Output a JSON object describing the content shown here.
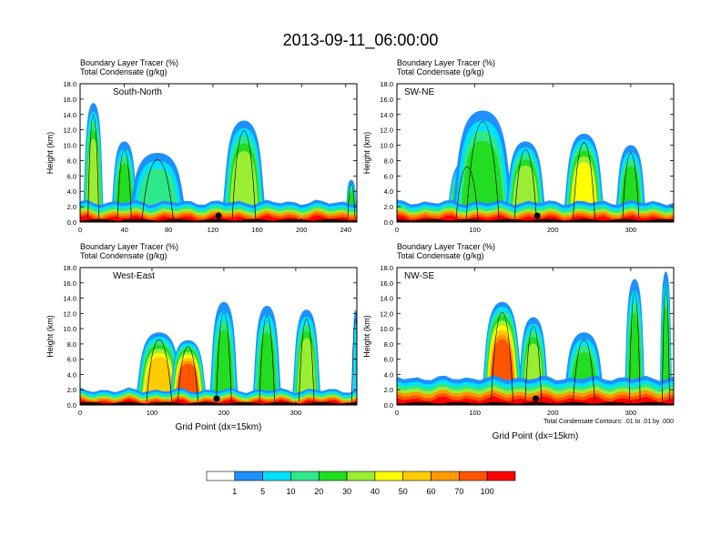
{
  "title": "2013-09-11_06:00:00",
  "chart_data": [
    {
      "type": "heatmap",
      "panel_label": "South-North",
      "subtitle_lines": [
        "Boundary Layer Tracer   (%)",
        "Total Condensate   (g/kg)"
      ],
      "ylabel": "Height (km)",
      "xlabel": "",
      "xlim": [
        0,
        250
      ],
      "ylim": [
        0,
        18
      ],
      "xticks": [
        0,
        40,
        80,
        120,
        160,
        200,
        240
      ],
      "yticks": [
        "0.0",
        "2.0",
        "4.0",
        "6.0",
        "8.0",
        "10.0",
        "12.0",
        "14.0",
        "16.0",
        "18.0"
      ],
      "marker_x": 125,
      "surface_tracer_depth_km": 1.6,
      "plumes": [
        {
          "x": 12,
          "width": 14,
          "top": 15.5,
          "level": 30
        },
        {
          "x": 40,
          "width": 18,
          "top": 10.5,
          "level": 20
        },
        {
          "x": 70,
          "width": 40,
          "top": 9.0,
          "level": 10
        },
        {
          "x": 148,
          "width": 30,
          "top": 13.2,
          "level": 30
        },
        {
          "x": 245,
          "width": 8,
          "top": 5.5,
          "level": 20
        }
      ]
    },
    {
      "type": "heatmap",
      "panel_label": "SW-NE",
      "subtitle_lines": [
        "Boundary Layer Tracer   (%)",
        "Total Condensate   (g/kg)"
      ],
      "ylabel": "Height (km)",
      "xlabel": "",
      "xlim": [
        0,
        355
      ],
      "ylim": [
        0,
        18
      ],
      "xticks": [
        0,
        100,
        200,
        300
      ],
      "yticks": [
        "0.0",
        "2.0",
        "4.0",
        "6.0",
        "8.0",
        "10.0",
        "12.0",
        "14.0",
        "16.0",
        "18.0"
      ],
      "marker_x": 180,
      "surface_tracer_depth_km": 1.6,
      "plumes": [
        {
          "x": 90,
          "width": 40,
          "top": 8.0,
          "level": 60
        },
        {
          "x": 110,
          "width": 60,
          "top": 14.5,
          "level": 20
        },
        {
          "x": 165,
          "width": 40,
          "top": 10.5,
          "level": 30
        },
        {
          "x": 240,
          "width": 40,
          "top": 11.5,
          "level": 40
        },
        {
          "x": 300,
          "width": 30,
          "top": 10.0,
          "level": 20
        }
      ]
    },
    {
      "type": "heatmap",
      "panel_label": "West-East",
      "subtitle_lines": [
        "Boundary Layer Tracer   (%)",
        "Total Condensate   (g/kg)"
      ],
      "ylabel": "Height (km)",
      "xlabel": "Grid Point (dx=15km)",
      "xlim": [
        0,
        385
      ],
      "ylim": [
        0,
        18
      ],
      "xticks": [
        0,
        100,
        200,
        300
      ],
      "yticks": [
        "0.0",
        "2.0",
        "4.0",
        "6.0",
        "8.0",
        "10.0",
        "12.0",
        "14.0",
        "16.0",
        "18.0"
      ],
      "marker_x": 190,
      "surface_tracer_depth_km": 1.2,
      "plumes": [
        {
          "x": 110,
          "width": 50,
          "top": 9.5,
          "level": 50
        },
        {
          "x": 150,
          "width": 40,
          "top": 8.5,
          "level": 70
        },
        {
          "x": 200,
          "width": 30,
          "top": 13.5,
          "level": 20
        },
        {
          "x": 260,
          "width": 30,
          "top": 13.0,
          "level": 20
        },
        {
          "x": 315,
          "width": 30,
          "top": 12.5,
          "level": 30
        },
        {
          "x": 383,
          "width": 6,
          "top": 12.5,
          "level": 5
        }
      ]
    },
    {
      "type": "heatmap",
      "panel_label": "NW-SE",
      "subtitle_lines": [
        "Boundary Layer Tracer   (%)",
        "Total Condensate   (g/kg)"
      ],
      "ylabel": "Height (km)",
      "xlabel": "Grid Point (dx=15km)",
      "note": "Total Condensate Contours: .01 to .01 by .000",
      "xlim": [
        0,
        355
      ],
      "ylim": [
        0,
        18
      ],
      "xticks": [
        0,
        100,
        200,
        300
      ],
      "yticks": [
        "0.0",
        "2.0",
        "4.0",
        "6.0",
        "8.0",
        "10.0",
        "12.0",
        "14.0",
        "16.0",
        "18.0"
      ],
      "marker_x": 178,
      "surface_tracer_depth_km": 2.2,
      "plumes": [
        {
          "x": 135,
          "width": 40,
          "top": 13.5,
          "level": 70
        },
        {
          "x": 175,
          "width": 30,
          "top": 11.5,
          "level": 30
        },
        {
          "x": 240,
          "width": 40,
          "top": 9.5,
          "level": 20
        },
        {
          "x": 305,
          "width": 20,
          "top": 16.5,
          "level": 20
        },
        {
          "x": 345,
          "width": 12,
          "top": 17.5,
          "level": 20
        }
      ]
    }
  ],
  "colorbar": {
    "labels": [
      "1",
      "5",
      "10",
      "20",
      "30",
      "40",
      "50",
      "60",
      "70",
      "100"
    ],
    "colors": [
      "#ffffff",
      "#1e90ff",
      "#00e0ff",
      "#2ee88a",
      "#22dd22",
      "#99ee33",
      "#ffff00",
      "#ffcc00",
      "#ff9900",
      "#ff5500",
      "#ff0000"
    ]
  }
}
